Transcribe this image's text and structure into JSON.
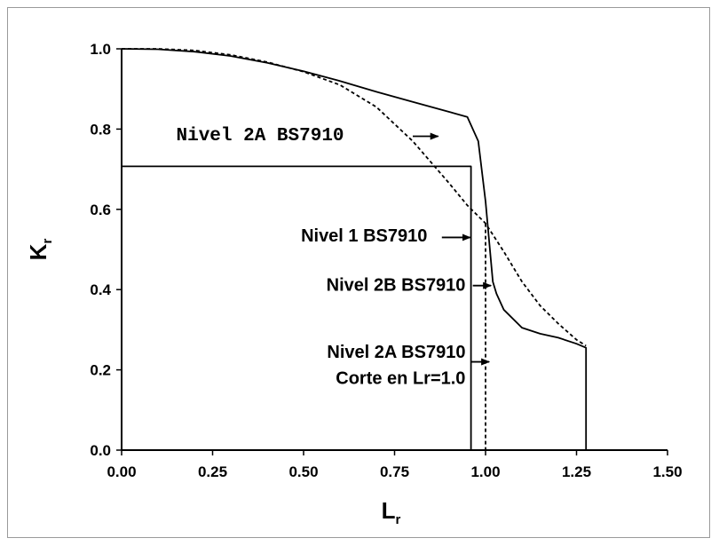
{
  "chart_data": {
    "type": "line",
    "title": "",
    "xlabel": "L",
    "xlabel_sub": "r",
    "ylabel": "K",
    "ylabel_sub": "r",
    "xlim": [
      0,
      1.5
    ],
    "ylim": [
      0,
      1.0
    ],
    "grid": false,
    "x_ticks": [
      0,
      0.25,
      0.5,
      0.75,
      1.0,
      1.25,
      1.5
    ],
    "x_tick_labels": [
      "0.00",
      "0.25",
      "0.50",
      "0.75",
      "1.00",
      "1.25",
      "1.50"
    ],
    "y_ticks": [
      0,
      0.2,
      0.4,
      0.6,
      0.8,
      1.0
    ],
    "y_tick_labels": [
      "0.0",
      "0.2",
      "0.4",
      "0.6",
      "0.8",
      "1.0"
    ],
    "series": [
      {
        "style": "solid",
        "x": [
          0.0,
          0.96,
          0.96
        ],
        "y": [
          0.707,
          0.707,
          0.0
        ]
      },
      {
        "style": "solid",
        "x": [
          0.0,
          0.1,
          0.2,
          0.3,
          0.4,
          0.5,
          0.6,
          0.7,
          0.8,
          0.9,
          0.95,
          0.98,
          1.0,
          1.02,
          1.03,
          1.05,
          1.1,
          1.15,
          1.2,
          1.25,
          1.276,
          1.276
        ],
        "y": [
          1.0,
          0.999,
          0.993,
          0.982,
          0.965,
          0.944,
          0.92,
          0.893,
          0.868,
          0.843,
          0.83,
          0.77,
          0.62,
          0.42,
          0.39,
          0.35,
          0.305,
          0.29,
          0.28,
          0.265,
          0.255,
          0.0
        ]
      },
      {
        "style": "dashed",
        "x": [
          0.0,
          0.1,
          0.2,
          0.3,
          0.4,
          0.5,
          0.6,
          0.7,
          0.8,
          0.9,
          0.95,
          1.0,
          1.05,
          1.1,
          1.15,
          1.2,
          1.25,
          1.276
        ],
        "y": [
          1.0,
          1.0,
          0.996,
          0.985,
          0.967,
          0.943,
          0.91,
          0.855,
          0.77,
          0.665,
          0.61,
          0.565,
          0.495,
          0.42,
          0.36,
          0.315,
          0.275,
          0.26
        ]
      },
      {
        "style": "dashed",
        "x": [
          1.0,
          1.0
        ],
        "y": [
          0.565,
          0.0
        ]
      }
    ],
    "annotations": [
      {
        "text": "Nivel 2A BS7910",
        "font": "mono",
        "anchor": "start",
        "label_at": [
          0.15,
          0.772
        ],
        "arrow_from": [
          0.8,
          0.782
        ],
        "arrow_to": [
          0.87,
          0.782
        ]
      },
      {
        "text": "Nivel 1 BS7910",
        "font": "sans",
        "anchor": "end",
        "label_at": [
          0.84,
          0.52
        ],
        "arrow_from": [
          0.88,
          0.53
        ],
        "arrow_to": [
          0.958,
          0.53
        ]
      },
      {
        "text": "Nivel 2B BS7910",
        "font": "sans",
        "anchor": "end",
        "label_at": [
          0.945,
          0.397
        ],
        "arrow_from": [
          0.965,
          0.41
        ],
        "arrow_to": [
          1.015,
          0.41
        ]
      },
      {
        "text": "Nivel 2A BS7910",
        "font": "sans",
        "anchor": "end",
        "label_at": [
          0.945,
          0.23
        ],
        "arrow_from": [
          0.96,
          0.22
        ],
        "arrow_to": [
          1.01,
          0.22
        ]
      },
      {
        "text": "Corte en Lr=1.0",
        "font": "sans",
        "anchor": "end",
        "label_at": [
          0.945,
          0.165
        ],
        "arrow_from": null,
        "arrow_to": null
      }
    ],
    "colors": {
      "line": "#000000",
      "frame_border": "#9a9a9a"
    }
  }
}
